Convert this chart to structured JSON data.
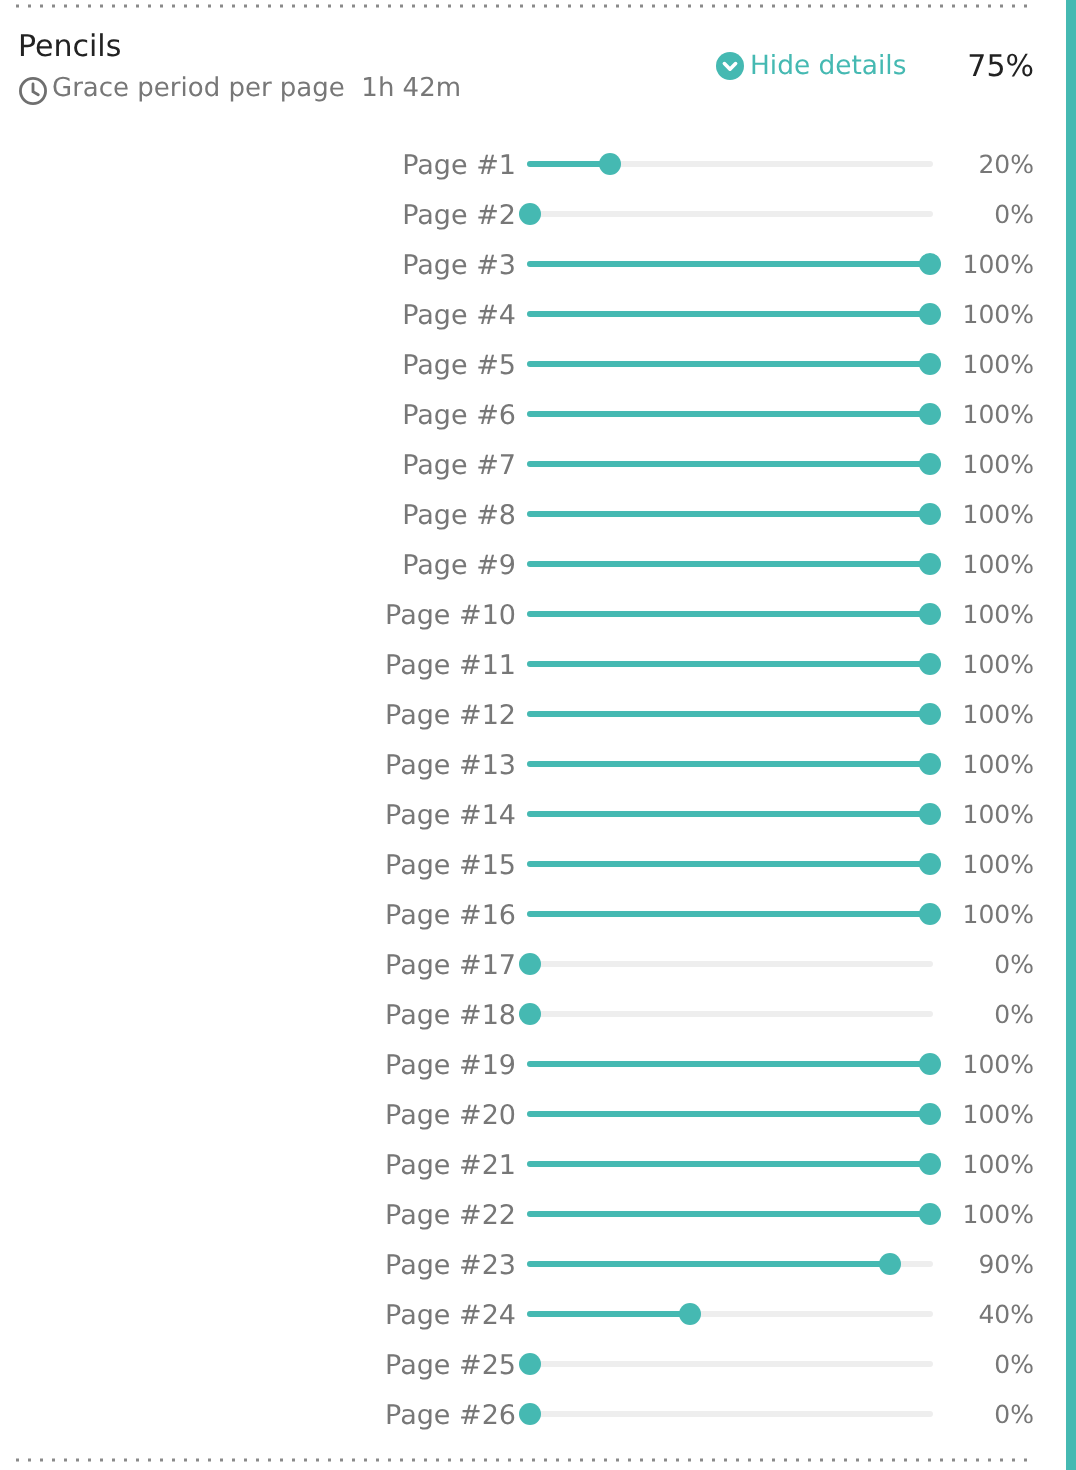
{
  "chart_data": {
    "type": "lollipop",
    "orientation": "horizontal",
    "title": "Pencils",
    "subtitle": "Grace period per page  1h 42m",
    "annotations": [
      "Hide details",
      "75%"
    ],
    "categories": [
      "Page #1",
      "Page #2",
      "Page #3",
      "Page #4",
      "Page #5",
      "Page #6",
      "Page #7",
      "Page #8",
      "Page #9",
      "Page #10",
      "Page #11",
      "Page #12",
      "Page #13",
      "Page #14",
      "Page #15",
      "Page #16",
      "Page #17",
      "Page #18",
      "Page #19",
      "Page #20",
      "Page #21",
      "Page #22",
      "Page #23",
      "Page #24",
      "Page #25",
      "Page #26"
    ],
    "values": [
      20,
      0,
      100,
      100,
      100,
      100,
      100,
      100,
      100,
      100,
      100,
      100,
      100,
      100,
      100,
      100,
      0,
      0,
      100,
      100,
      100,
      100,
      90,
      40,
      0,
      0
    ],
    "value_labels": [
      "20%",
      "0%",
      "100%",
      "100%",
      "100%",
      "100%",
      "100%",
      "100%",
      "100%",
      "100%",
      "100%",
      "100%",
      "100%",
      "100%",
      "100%",
      "100%",
      "0%",
      "0%",
      "100%",
      "100%",
      "100%",
      "100%",
      "90%",
      "40%",
      "0%",
      "0%"
    ],
    "color": "#45b9b2",
    "grid": "y",
    "tick_labels": "y",
    "marker": "circle"
  }
}
